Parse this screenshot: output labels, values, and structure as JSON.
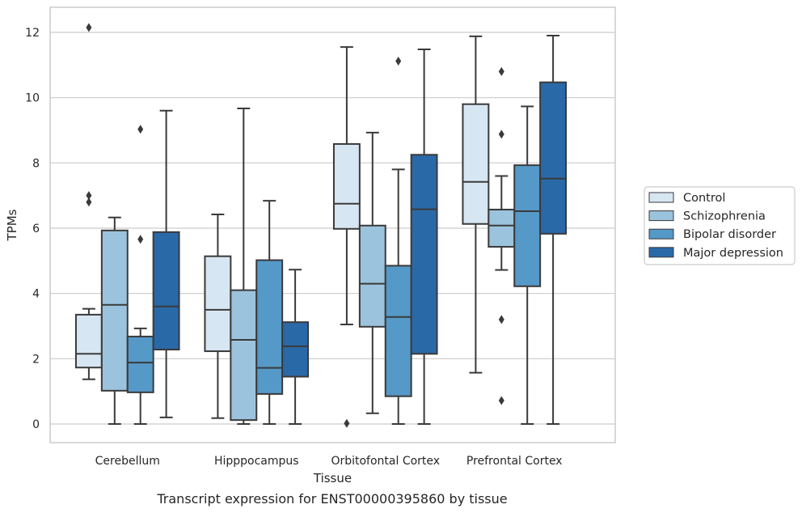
{
  "chart_data": {
    "type": "box",
    "caption": "Transcript expression for ENST00000395860 by tissue",
    "xlabel": "Tissue",
    "ylabel": "TPMs",
    "ylim": [
      -0.6,
      12.75
    ],
    "yticks": [
      0,
      2,
      4,
      6,
      8,
      10,
      12
    ],
    "grid": "horizontal",
    "legend_position": "right",
    "categories": [
      "Cerebellum",
      "Hipppocampus",
      "Orbitofontal Cortex",
      "Prefrontal Cortex"
    ],
    "series": [
      {
        "name": "Control",
        "color": "#d7e6f3",
        "boxes": [
          {
            "whisker_low": 1.37,
            "q1": 1.73,
            "median": 2.15,
            "q3": 3.35,
            "whisker_high": 3.53,
            "outliers": [
              6.8,
              7.0,
              12.15
            ]
          },
          {
            "whisker_low": 0.18,
            "q1": 2.23,
            "median": 3.5,
            "q3": 5.14,
            "whisker_high": 6.42,
            "outliers": []
          },
          {
            "whisker_low": 3.05,
            "q1": 5.98,
            "median": 6.75,
            "q3": 8.58,
            "whisker_high": 11.55,
            "outliers": [
              0.02
            ]
          },
          {
            "whisker_low": 1.57,
            "q1": 6.13,
            "median": 7.42,
            "q3": 9.8,
            "whisker_high": 11.88,
            "outliers": []
          }
        ]
      },
      {
        "name": "Schizophrenia",
        "color": "#9cc3dd",
        "boxes": [
          {
            "whisker_low": 0.0,
            "q1": 1.02,
            "median": 3.65,
            "q3": 5.93,
            "whisker_high": 6.33,
            "outliers": []
          },
          {
            "whisker_low": 0.0,
            "q1": 0.12,
            "median": 2.58,
            "q3": 4.1,
            "whisker_high": 9.67,
            "outliers": []
          },
          {
            "whisker_low": 0.33,
            "q1": 2.98,
            "median": 4.3,
            "q3": 6.08,
            "whisker_high": 8.93,
            "outliers": []
          },
          {
            "whisker_low": 4.72,
            "q1": 5.43,
            "median": 6.08,
            "q3": 6.57,
            "whisker_high": 7.6,
            "outliers": [
              0.72,
              3.2,
              8.88,
              10.8
            ]
          }
        ]
      },
      {
        "name": "Bipolar disorder",
        "color": "#5599c8",
        "boxes": [
          {
            "whisker_low": 0.0,
            "q1": 0.97,
            "median": 1.88,
            "q3": 2.68,
            "whisker_high": 2.93,
            "outliers": [
              5.66,
              9.03
            ]
          },
          {
            "whisker_low": 0.0,
            "q1": 0.92,
            "median": 1.72,
            "q3": 5.02,
            "whisker_high": 6.84,
            "outliers": []
          },
          {
            "whisker_low": 0.0,
            "q1": 0.85,
            "median": 3.28,
            "q3": 4.85,
            "whisker_high": 7.8,
            "outliers": [
              11.12
            ]
          },
          {
            "whisker_low": 0.0,
            "q1": 4.22,
            "median": 6.52,
            "q3": 7.93,
            "whisker_high": 9.73,
            "outliers": []
          }
        ]
      },
      {
        "name": "Major depression",
        "color": "#2a69a8",
        "boxes": [
          {
            "whisker_low": 0.2,
            "q1": 2.28,
            "median": 3.6,
            "q3": 5.88,
            "whisker_high": 9.6,
            "outliers": []
          },
          {
            "whisker_low": 0.0,
            "q1": 1.45,
            "median": 2.38,
            "q3": 3.12,
            "whisker_high": 4.73,
            "outliers": []
          },
          {
            "whisker_low": 0.0,
            "q1": 2.15,
            "median": 6.58,
            "q3": 8.25,
            "whisker_high": 11.48,
            "outliers": []
          },
          {
            "whisker_low": 0.0,
            "q1": 5.83,
            "median": 7.52,
            "q3": 10.47,
            "whisker_high": 11.9,
            "outliers": []
          }
        ]
      }
    ]
  }
}
